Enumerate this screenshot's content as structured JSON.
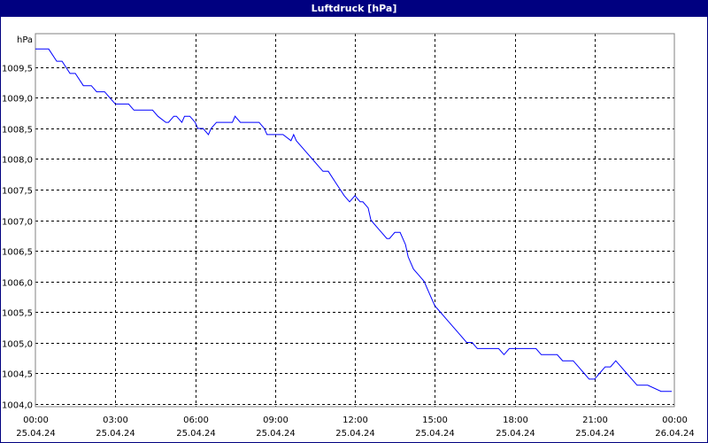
{
  "window": {
    "title": "Luftdruck [hPa]"
  },
  "chart_data": {
    "type": "line",
    "title": "Luftdruck [hPa]",
    "ylabel": "hPa",
    "xlabel": "",
    "ylim": [
      1003.95,
      1010.05
    ],
    "xlim": [
      0,
      24
    ],
    "grid": true,
    "y_ticks": [
      {
        "value": 1004.0,
        "label": "1004,0"
      },
      {
        "value": 1004.5,
        "label": "1004,5"
      },
      {
        "value": 1005.0,
        "label": "1005,0"
      },
      {
        "value": 1005.5,
        "label": "1005,5"
      },
      {
        "value": 1006.0,
        "label": "1006,0"
      },
      {
        "value": 1006.5,
        "label": "1006,5"
      },
      {
        "value": 1007.0,
        "label": "1007,0"
      },
      {
        "value": 1007.5,
        "label": "1007,5"
      },
      {
        "value": 1008.0,
        "label": "1008,0"
      },
      {
        "value": 1008.5,
        "label": "1008,5"
      },
      {
        "value": 1009.0,
        "label": "1009,0"
      },
      {
        "value": 1009.5,
        "label": "1009,5"
      }
    ],
    "x_ticks": [
      {
        "value": 0,
        "time": "00:00",
        "date": "25.04.24"
      },
      {
        "value": 3,
        "time": "03:00",
        "date": "25.04.24"
      },
      {
        "value": 6,
        "time": "06:00",
        "date": "25.04.24"
      },
      {
        "value": 9,
        "time": "09:00",
        "date": "25.04.24"
      },
      {
        "value": 12,
        "time": "12:00",
        "date": "25.04.24"
      },
      {
        "value": 15,
        "time": "15:00",
        "date": "25.04.24"
      },
      {
        "value": 18,
        "time": "18:00",
        "date": "25.04.24"
      },
      {
        "value": 21,
        "time": "21:00",
        "date": "25.04.24"
      },
      {
        "value": 24,
        "time": "00:00",
        "date": "26.04.24"
      }
    ],
    "series": [
      {
        "color": "#0000ff",
        "x": [
          0,
          0.5,
          0.8,
          1.0,
          1.3,
          1.5,
          1.8,
          2.1,
          2.3,
          2.6,
          2.8,
          3.0,
          3.5,
          3.7,
          4.4,
          4.6,
          4.9,
          5.0,
          5.2,
          5.3,
          5.5,
          5.6,
          5.8,
          6.0,
          6.1,
          6.3,
          6.5,
          6.6,
          6.8,
          7.4,
          7.5,
          7.7,
          7.8,
          8.4,
          8.6,
          8.7,
          9.3,
          9.6,
          9.7,
          9.8,
          10.0,
          10.2,
          10.4,
          10.6,
          10.8,
          11.0,
          11.3,
          11.6,
          11.8,
          12.0,
          12.2,
          12.3,
          12.5,
          12.6,
          12.8,
          13.0,
          13.2,
          13.3,
          13.5,
          13.7,
          13.9,
          14.0,
          14.2,
          14.4,
          14.6,
          14.8,
          15.0,
          15.2,
          15.4,
          15.6,
          15.8,
          16.0,
          16.2,
          16.4,
          16.6,
          16.8,
          17.0,
          17.2,
          17.4,
          17.6,
          17.8,
          18.4,
          18.6,
          18.8,
          19.0,
          19.6,
          19.8,
          20.2,
          20.4,
          20.6,
          20.8,
          21.0,
          21.2,
          21.4,
          21.6,
          21.8,
          22.0,
          22.2,
          22.4,
          22.6,
          22.8,
          23.0,
          23.5,
          23.7,
          23.9
        ],
        "values": [
          1009.8,
          1009.8,
          1009.6,
          1009.6,
          1009.4,
          1009.4,
          1009.2,
          1009.2,
          1009.1,
          1009.1,
          1009.0,
          1008.9,
          1008.9,
          1008.8,
          1008.8,
          1008.7,
          1008.6,
          1008.6,
          1008.7,
          1008.7,
          1008.6,
          1008.7,
          1008.7,
          1008.6,
          1008.5,
          1008.5,
          1008.4,
          1008.5,
          1008.6,
          1008.6,
          1008.7,
          1008.6,
          1008.6,
          1008.6,
          1008.5,
          1008.4,
          1008.4,
          1008.3,
          1008.4,
          1008.3,
          1008.2,
          1008.1,
          1008.0,
          1007.9,
          1007.8,
          1007.8,
          1007.6,
          1007.4,
          1007.3,
          1007.4,
          1007.3,
          1007.3,
          1007.2,
          1007.0,
          1006.9,
          1006.8,
          1006.7,
          1006.7,
          1006.8,
          1006.8,
          1006.6,
          1006.4,
          1006.2,
          1006.1,
          1006.0,
          1005.8,
          1005.6,
          1005.5,
          1005.4,
          1005.3,
          1005.2,
          1005.1,
          1005.0,
          1005.0,
          1004.9,
          1004.9,
          1004.9,
          1004.9,
          1004.9,
          1004.8,
          1004.9,
          1004.9,
          1004.9,
          1004.9,
          1004.8,
          1004.8,
          1004.7,
          1004.7,
          1004.6,
          1004.5,
          1004.4,
          1004.4,
          1004.5,
          1004.6,
          1004.6,
          1004.7,
          1004.6,
          1004.5,
          1004.4,
          1004.3,
          1004.3,
          1004.3,
          1004.2,
          1004.2,
          1004.2
        ]
      }
    ]
  }
}
